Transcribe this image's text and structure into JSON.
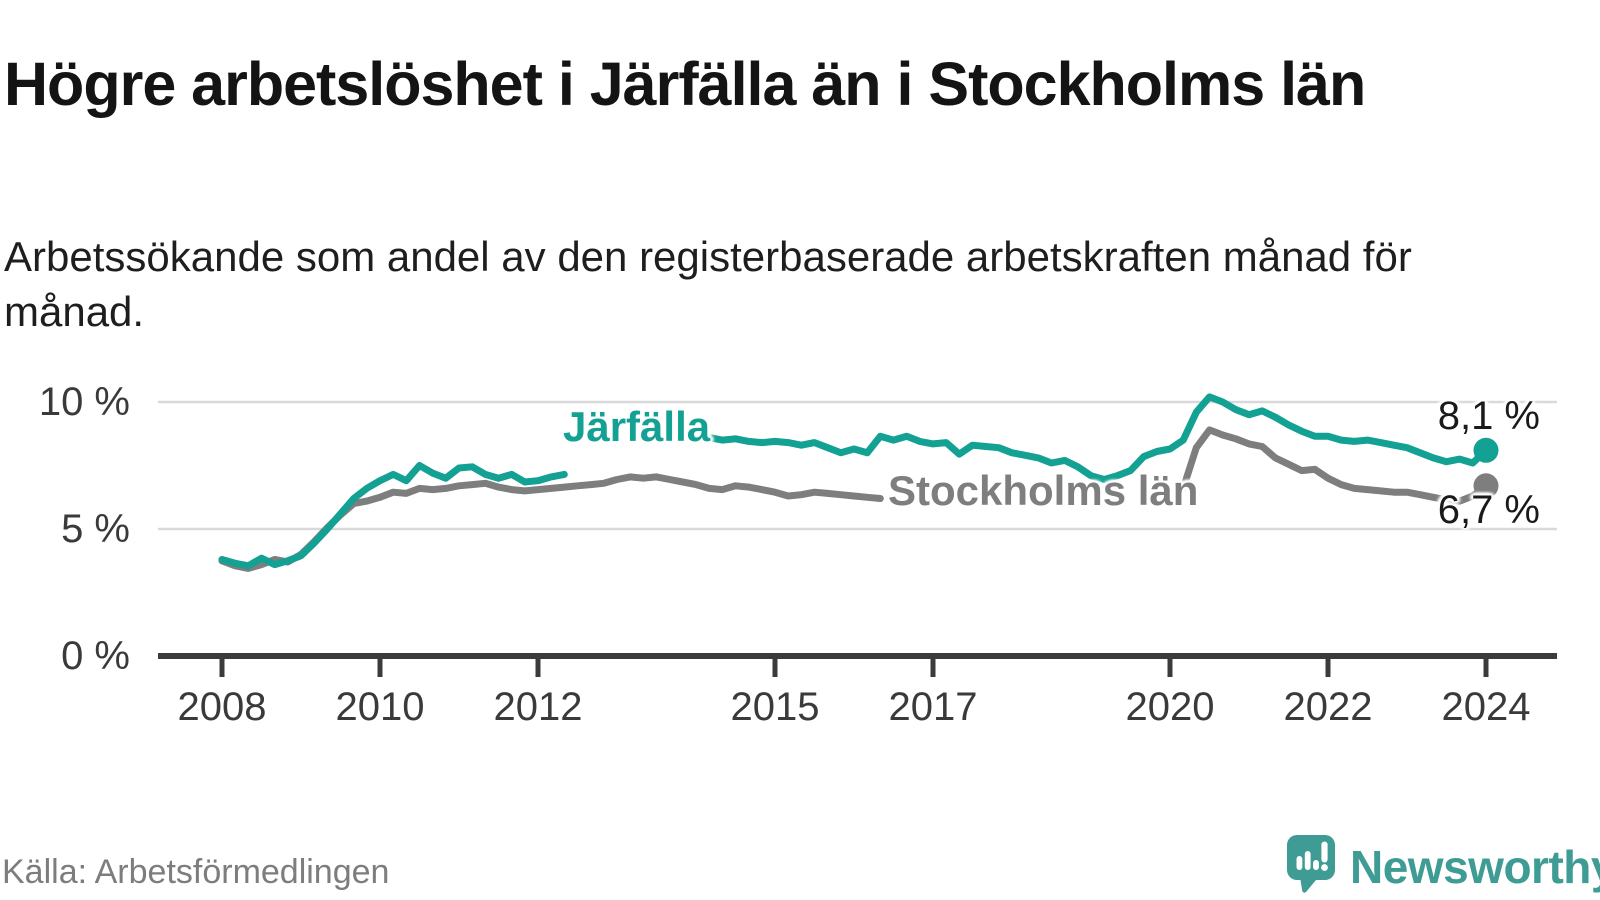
{
  "title": "Högre arbetslöshet i Järfälla än i Stockholms län",
  "subtitle": "Arbetssökande som andel av den registerbaserade arbetskraften månad för månad.",
  "source": "Källa: Arbetsförmedlingen",
  "branding": {
    "logo_text": "Newsworthy",
    "logo_icon": "newsworthy-speech-bubble-chart-icon",
    "logo_color": "#3F9C95"
  },
  "chart_data": {
    "type": "line",
    "title": "Högre arbetslöshet i Järfälla än i Stockholms län",
    "subtitle": "Arbetssökande som andel av den registerbaserade arbetskraften månad för månad.",
    "unit": "%",
    "grid": "horizontal",
    "legend_position": "inline-labels",
    "xlim": [
      2007.2,
      2024.9
    ],
    "ylim": [
      0,
      10.8
    ],
    "x_start_year": 2008,
    "points_per_year": 6,
    "x_ticks": [
      "2008",
      "2010",
      "2012",
      "2015",
      "2017",
      "2020",
      "2022",
      "2024"
    ],
    "y_ticks": [
      {
        "value": 0,
        "label": "0 %"
      },
      {
        "value": 5,
        "label": "5 %"
      },
      {
        "value": 10,
        "label": "10 %"
      }
    ],
    "colors": {
      "grid": "#d9d9d9",
      "axis": "#3b3b3b",
      "accent_teal": "#12A192",
      "neutral_gray": "#7E7E7E"
    },
    "series": [
      {
        "name": "Järfälla",
        "color": "#12A192",
        "end_label": "8,1 %",
        "end_value": 8.1,
        "values": [
          3.8,
          3.65,
          3.55,
          3.85,
          3.6,
          3.75,
          3.95,
          4.45,
          5.0,
          5.6,
          6.2,
          6.6,
          6.9,
          7.15,
          6.9,
          7.5,
          7.2,
          7.0,
          7.4,
          7.45,
          7.15,
          7.0,
          7.15,
          6.85,
          6.9,
          7.05,
          7.15,
          7.25,
          7.3,
          7.4,
          7.6,
          7.8,
          7.95,
          8.1,
          8.25,
          8.4,
          8.5,
          8.6,
          8.5,
          8.55,
          8.45,
          8.4,
          8.45,
          8.4,
          8.3,
          8.4,
          8.2,
          8.0,
          8.15,
          8.0,
          8.65,
          8.5,
          8.65,
          8.45,
          8.35,
          8.4,
          7.95,
          8.3,
          8.25,
          8.2,
          8.0,
          7.9,
          7.8,
          7.6,
          7.7,
          7.45,
          7.1,
          6.95,
          7.1,
          7.3,
          7.85,
          8.05,
          8.15,
          8.5,
          9.6,
          10.2,
          10.0,
          9.7,
          9.5,
          9.65,
          9.4,
          9.1,
          8.85,
          8.65,
          8.65,
          8.5,
          8.45,
          8.5,
          8.4,
          8.3,
          8.2,
          8.0,
          7.8,
          7.65,
          7.75,
          7.6,
          8.1
        ]
      },
      {
        "name": "Stockholms län",
        "color": "#7E7E7E",
        "end_label": "6,7 %",
        "end_value": 6.7,
        "values": [
          3.75,
          3.55,
          3.45,
          3.6,
          3.8,
          3.7,
          4.0,
          4.5,
          5.05,
          5.55,
          6.0,
          6.1,
          6.25,
          6.45,
          6.4,
          6.6,
          6.55,
          6.6,
          6.7,
          6.75,
          6.8,
          6.65,
          6.55,
          6.5,
          6.55,
          6.6,
          6.65,
          6.7,
          6.75,
          6.8,
          6.95,
          7.05,
          7.0,
          7.05,
          6.95,
          6.85,
          6.75,
          6.6,
          6.55,
          6.7,
          6.65,
          6.55,
          6.45,
          6.3,
          6.35,
          6.45,
          6.4,
          6.35,
          6.3,
          6.25,
          6.2,
          6.1,
          6.15,
          6.1,
          6.1,
          6.15,
          6.05,
          6.1,
          6.05,
          6.0,
          5.95,
          5.9,
          5.85,
          5.9,
          5.85,
          5.9,
          5.9,
          5.95,
          6.0,
          6.05,
          6.15,
          6.25,
          6.3,
          6.6,
          8.2,
          8.9,
          8.7,
          8.55,
          8.35,
          8.25,
          7.8,
          7.55,
          7.3,
          7.35,
          7.0,
          6.75,
          6.6,
          6.55,
          6.5,
          6.45,
          6.45,
          6.35,
          6.25,
          6.15,
          6.1,
          6.3,
          6.7
        ]
      }
    ]
  }
}
